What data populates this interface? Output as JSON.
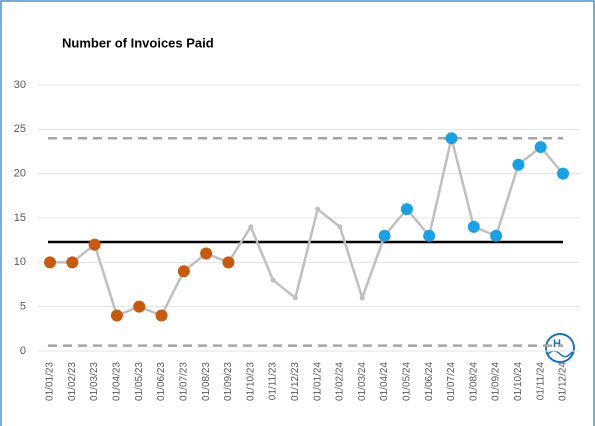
{
  "chart_data": {
    "type": "line",
    "title": "Number of Invoices Paid",
    "categories": [
      "01/01/23",
      "01/02/23",
      "01/03/23",
      "01/04/23",
      "01/05/23",
      "01/06/23",
      "01/07/23",
      "01/08/23",
      "01/09/23",
      "01/10/23",
      "01/11/23",
      "01/12/23",
      "01/01/24",
      "01/02/24",
      "01/03/24",
      "01/04/24",
      "01/05/24",
      "01/06/24",
      "01/07/24",
      "01/08/24",
      "01/09/24",
      "01/10/24",
      "01/11/24",
      "01/12/24"
    ],
    "series": [
      {
        "color": "#bfbfbf",
        "values": [
          10,
          10,
          12,
          4,
          5,
          4,
          9,
          11,
          10,
          14,
          8,
          6,
          16,
          14,
          6,
          13,
          16,
          13,
          24,
          14,
          13,
          21,
          23,
          20
        ],
        "marker_colors": [
          "#c55a11",
          "#c55a11",
          "#c55a11",
          "#c55a11",
          "#c55a11",
          "#c55a11",
          "#c55a11",
          "#c55a11",
          "#c55a11",
          null,
          null,
          null,
          null,
          null,
          null,
          "#1ba1e2",
          "#1ba1e2",
          "#1ba1e2",
          "#1ba1e2",
          "#1ba1e2",
          "#1ba1e2",
          "#1ba1e2",
          "#1ba1e2",
          "#1ba1e2"
        ]
      }
    ],
    "reference_lines": [
      {
        "value": 24,
        "color": "#a6a6a6",
        "dashed": true
      },
      {
        "value": 12.3,
        "color": "#000000",
        "dashed": false
      },
      {
        "value": 0.6,
        "color": "#a6a6a6",
        "dashed": true
      }
    ],
    "ylim": [
      0,
      30
    ],
    "yticks": [
      0,
      5,
      10,
      15,
      20,
      25,
      30
    ],
    "grid": true
  }
}
